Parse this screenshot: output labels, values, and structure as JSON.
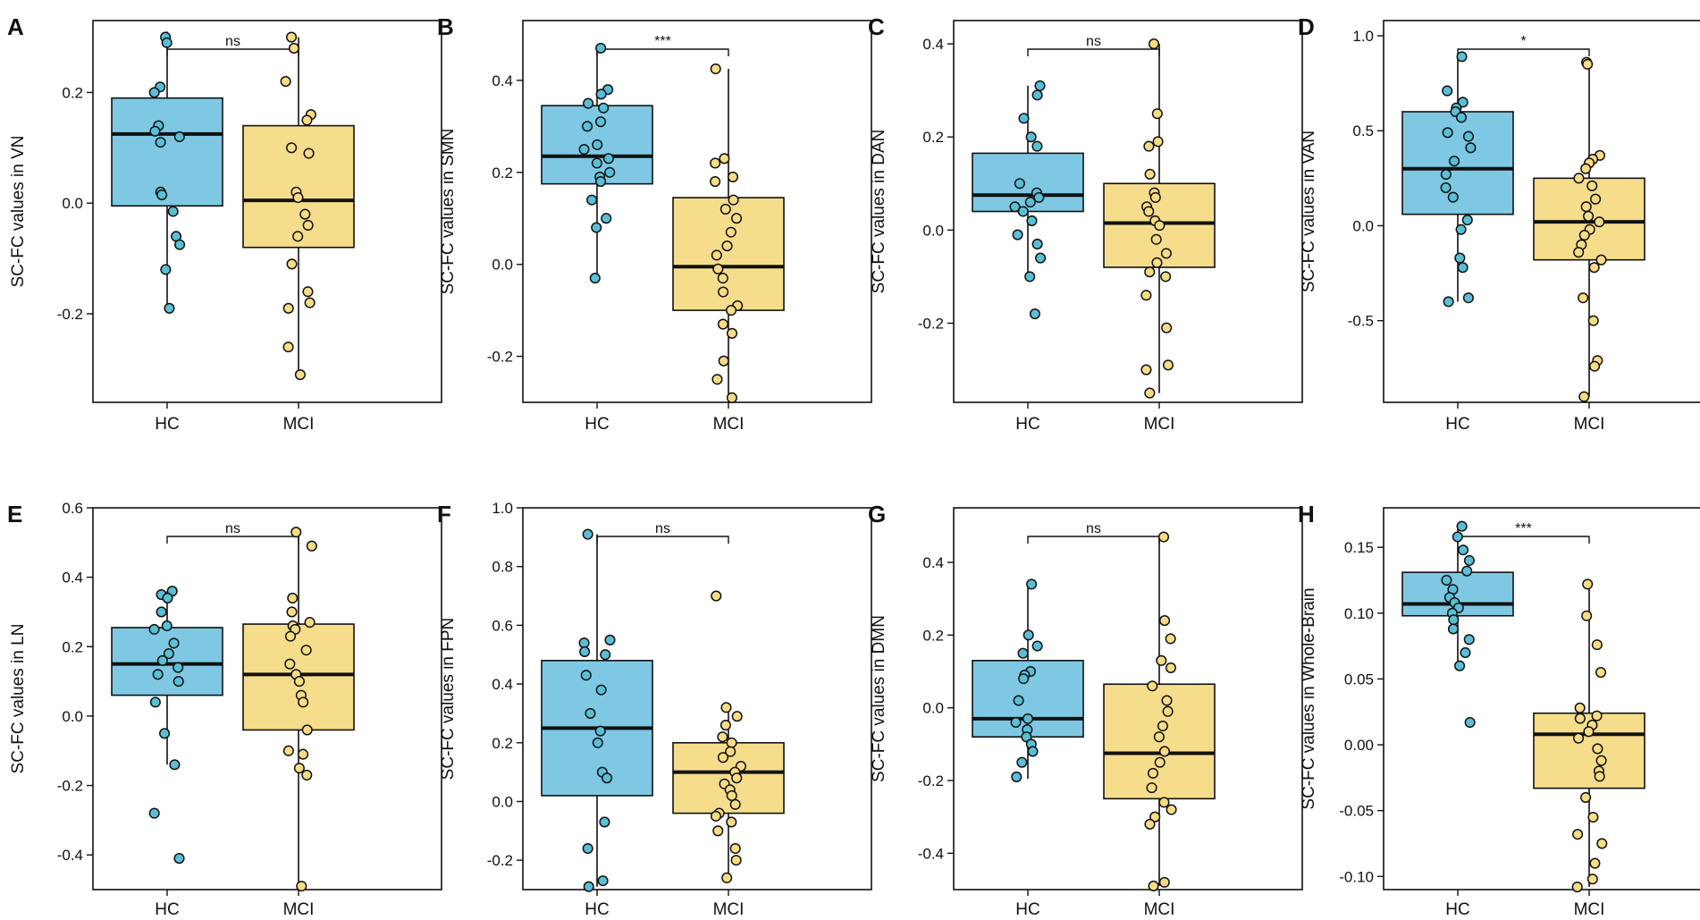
{
  "colors": {
    "hc_fill": "#7ec8e3",
    "mci_fill": "#f6dd8c",
    "hc_point": "#58bfd6",
    "mci_point": "#f8dc84",
    "stroke": "#111111"
  },
  "chart_data": [
    {
      "type": "box",
      "panel": "A",
      "ylabel": "SC-FC values in VN",
      "categories": [
        "HC",
        "MCI"
      ],
      "ylim": [
        -0.36,
        0.33
      ],
      "yticks": [
        {
          "v": -0.2,
          "label": "-0.2"
        },
        {
          "v": 0.0,
          "label": "0.0"
        },
        {
          "v": 0.2,
          "label": "0.2"
        }
      ],
      "significance": "ns",
      "boxes": [
        {
          "q1": -0.005,
          "median": 0.125,
          "q3": 0.19,
          "whisker_low": -0.19,
          "whisker_high": 0.31
        },
        {
          "q1": -0.08,
          "median": 0.005,
          "q3": 0.14,
          "whisker_low": -0.31,
          "whisker_high": 0.3
        }
      ],
      "points": [
        [
          0.3,
          0.29,
          0.21,
          0.2,
          0.14,
          0.13,
          0.12,
          0.11,
          0.02,
          0.015,
          -0.015,
          -0.06,
          -0.075,
          -0.12,
          -0.19
        ],
        [
          0.3,
          0.28,
          0.22,
          0.16,
          0.15,
          0.1,
          0.09,
          0.02,
          0.01,
          -0.02,
          -0.04,
          -0.06,
          -0.11,
          -0.16,
          -0.18,
          -0.19,
          -0.26,
          -0.31
        ]
      ]
    },
    {
      "type": "box",
      "panel": "B",
      "ylabel": "SC-FC values in SMN",
      "categories": [
        "HC",
        "MCI"
      ],
      "ylim": [
        -0.3,
        0.53
      ],
      "yticks": [
        {
          "v": -0.2,
          "label": "-0.2"
        },
        {
          "v": 0.0,
          "label": "0.0"
        },
        {
          "v": 0.2,
          "label": "0.2"
        },
        {
          "v": 0.4,
          "label": "0.4"
        }
      ],
      "significance": "***",
      "boxes": [
        {
          "q1": 0.175,
          "median": 0.235,
          "q3": 0.345,
          "whisker_low": -0.025,
          "whisker_high": 0.47
        },
        {
          "q1": -0.1,
          "median": -0.005,
          "q3": 0.145,
          "whisker_low": -0.295,
          "whisker_high": 0.425
        }
      ],
      "points": [
        [
          0.47,
          0.38,
          0.37,
          0.35,
          0.34,
          0.31,
          0.3,
          0.26,
          0.25,
          0.23,
          0.22,
          0.2,
          0.19,
          0.18,
          0.14,
          0.1,
          0.08,
          -0.03
        ],
        [
          0.425,
          0.23,
          0.22,
          0.19,
          0.18,
          0.14,
          0.12,
          0.1,
          0.07,
          0.04,
          0.02,
          -0.01,
          -0.03,
          -0.06,
          -0.09,
          -0.1,
          -0.13,
          -0.15,
          -0.21,
          -0.25,
          -0.29
        ]
      ]
    },
    {
      "type": "box",
      "panel": "C",
      "ylabel": "SC-FC values in DAN",
      "categories": [
        "HC",
        "MCI"
      ],
      "ylim": [
        -0.37,
        0.45
      ],
      "yticks": [
        {
          "v": -0.2,
          "label": "-0.2"
        },
        {
          "v": 0.0,
          "label": "0.0"
        },
        {
          "v": 0.2,
          "label": "0.2"
        },
        {
          "v": 0.4,
          "label": "0.4"
        }
      ],
      "significance": "ns",
      "boxes": [
        {
          "q1": 0.04,
          "median": 0.075,
          "q3": 0.165,
          "whisker_low": -0.105,
          "whisker_high": 0.31
        },
        {
          "q1": -0.08,
          "median": 0.015,
          "q3": 0.1,
          "whisker_low": -0.35,
          "whisker_high": 0.4
        }
      ],
      "points": [
        [
          0.31,
          0.29,
          0.24,
          0.2,
          0.18,
          0.1,
          0.08,
          0.07,
          0.06,
          0.05,
          0.04,
          0.02,
          -0.01,
          -0.03,
          -0.06,
          -0.1,
          -0.18
        ],
        [
          0.4,
          0.25,
          0.19,
          0.18,
          0.12,
          0.08,
          0.07,
          0.05,
          0.04,
          0.02,
          0.01,
          -0.02,
          -0.05,
          -0.07,
          -0.09,
          -0.1,
          -0.14,
          -0.21,
          -0.29,
          -0.3,
          -0.35
        ]
      ]
    },
    {
      "type": "box",
      "panel": "D",
      "ylabel": "SC-FC values in VAN",
      "categories": [
        "HC",
        "MCI"
      ],
      "ylim": [
        -0.93,
        1.08
      ],
      "yticks": [
        {
          "v": -0.5,
          "label": "-0.5"
        },
        {
          "v": 0.0,
          "label": "0.0"
        },
        {
          "v": 0.5,
          "label": "0.5"
        },
        {
          "v": 1.0,
          "label": "1.0"
        }
      ],
      "significance": "*",
      "boxes": [
        {
          "q1": 0.06,
          "median": 0.3,
          "q3": 0.6,
          "whisker_low": -0.4,
          "whisker_high": 0.89
        },
        {
          "q1": -0.18,
          "median": 0.02,
          "q3": 0.25,
          "whisker_low": -0.9,
          "whisker_high": 0.86
        }
      ],
      "points": [
        [
          0.89,
          0.71,
          0.65,
          0.62,
          0.6,
          0.57,
          0.49,
          0.47,
          0.41,
          0.34,
          0.27,
          0.2,
          0.15,
          0.03,
          -0.02,
          -0.17,
          -0.22,
          -0.38,
          -0.4
        ],
        [
          0.86,
          0.85,
          0.37,
          0.35,
          0.33,
          0.3,
          0.25,
          0.21,
          0.14,
          0.1,
          0.05,
          0.02,
          -0.02,
          -0.05,
          -0.1,
          -0.14,
          -0.18,
          -0.22,
          -0.38,
          -0.5,
          -0.71,
          -0.74,
          -0.9
        ]
      ]
    },
    {
      "type": "box",
      "panel": "E",
      "ylabel": "SC-FC values in LN",
      "categories": [
        "HC",
        "MCI"
      ],
      "ylim": [
        -0.5,
        0.6
      ],
      "yticks": [
        {
          "v": -0.4,
          "label": "-0.4"
        },
        {
          "v": -0.2,
          "label": "-0.2"
        },
        {
          "v": 0.0,
          "label": "0.0"
        },
        {
          "v": 0.2,
          "label": "0.2"
        },
        {
          "v": 0.4,
          "label": "0.4"
        },
        {
          "v": 0.6,
          "label": "0.6"
        }
      ],
      "significance": "ns",
      "boxes": [
        {
          "q1": 0.06,
          "median": 0.15,
          "q3": 0.255,
          "whisker_low": -0.14,
          "whisker_high": 0.36
        },
        {
          "q1": -0.04,
          "median": 0.12,
          "q3": 0.265,
          "whisker_low": -0.49,
          "whisker_high": 0.53
        }
      ],
      "points": [
        [
          0.36,
          0.35,
          0.34,
          0.3,
          0.26,
          0.25,
          0.21,
          0.18,
          0.16,
          0.14,
          0.12,
          0.1,
          0.04,
          -0.05,
          -0.14,
          -0.28,
          -0.41
        ],
        [
          0.53,
          0.49,
          0.34,
          0.3,
          0.27,
          0.26,
          0.25,
          0.23,
          0.19,
          0.15,
          0.12,
          0.1,
          0.06,
          0.04,
          -0.04,
          -0.1,
          -0.11,
          -0.15,
          -0.17,
          -0.49
        ]
      ]
    },
    {
      "type": "box",
      "panel": "F",
      "ylabel": "SC-FC values in FPN",
      "categories": [
        "HC",
        "MCI"
      ],
      "ylim": [
        -0.3,
        1.0
      ],
      "yticks": [
        {
          "v": -0.2,
          "label": "-0.2"
        },
        {
          "v": 0.0,
          "label": "0.0"
        },
        {
          "v": 0.2,
          "label": "0.2"
        },
        {
          "v": 0.4,
          "label": "0.4"
        },
        {
          "v": 0.6,
          "label": "0.6"
        },
        {
          "v": 0.8,
          "label": "0.8"
        },
        {
          "v": 1.0,
          "label": "1.0"
        }
      ],
      "significance": "ns",
      "boxes": [
        {
          "q1": 0.02,
          "median": 0.25,
          "q3": 0.48,
          "whisker_low": -0.29,
          "whisker_high": 0.91
        },
        {
          "q1": -0.04,
          "median": 0.1,
          "q3": 0.2,
          "whisker_low": -0.26,
          "whisker_high": 0.33
        }
      ],
      "points": [
        [
          0.91,
          0.55,
          0.54,
          0.51,
          0.5,
          0.43,
          0.38,
          0.3,
          0.24,
          0.2,
          0.1,
          0.08,
          -0.07,
          -0.16,
          -0.27,
          -0.29
        ],
        [
          0.7,
          0.32,
          0.29,
          0.26,
          0.22,
          0.2,
          0.17,
          0.15,
          0.12,
          0.1,
          0.08,
          0.06,
          0.04,
          0.02,
          -0.01,
          -0.04,
          -0.05,
          -0.07,
          -0.1,
          -0.16,
          -0.2,
          -0.26
        ]
      ]
    },
    {
      "type": "box",
      "panel": "G",
      "ylabel": "SC-FC values in DMN",
      "categories": [
        "HC",
        "MCI"
      ],
      "ylim": [
        -0.5,
        0.55
      ],
      "yticks": [
        {
          "v": -0.4,
          "label": "-0.4"
        },
        {
          "v": -0.2,
          "label": "-0.2"
        },
        {
          "v": 0.0,
          "label": "0.0"
        },
        {
          "v": 0.2,
          "label": "0.2"
        },
        {
          "v": 0.4,
          "label": "0.4"
        }
      ],
      "significance": "ns",
      "boxes": [
        {
          "q1": -0.08,
          "median": -0.03,
          "q3": 0.13,
          "whisker_low": -0.195,
          "whisker_high": 0.34
        },
        {
          "q1": -0.25,
          "median": -0.125,
          "q3": 0.065,
          "whisker_low": -0.49,
          "whisker_high": 0.47
        }
      ],
      "points": [
        [
          0.34,
          0.2,
          0.17,
          0.15,
          0.1,
          0.09,
          0.08,
          0.02,
          -0.03,
          -0.04,
          -0.06,
          -0.08,
          -0.1,
          -0.12,
          -0.15,
          -0.19
        ],
        [
          0.47,
          0.24,
          0.19,
          0.13,
          0.11,
          0.06,
          0.02,
          -0.01,
          -0.05,
          -0.08,
          -0.12,
          -0.15,
          -0.18,
          -0.22,
          -0.26,
          -0.28,
          -0.3,
          -0.32,
          -0.48,
          -0.49
        ]
      ]
    },
    {
      "type": "box",
      "panel": "H",
      "ylabel": "SC-FC values in Whole-Brain",
      "categories": [
        "HC",
        "MCI"
      ],
      "ylim": [
        -0.11,
        0.18
      ],
      "yticks": [
        {
          "v": -0.1,
          "label": "-0.10"
        },
        {
          "v": -0.05,
          "label": "-0.05"
        },
        {
          "v": 0.0,
          "label": "0.00"
        },
        {
          "v": 0.05,
          "label": "0.05"
        },
        {
          "v": 0.1,
          "label": "0.10"
        },
        {
          "v": 0.15,
          "label": "0.15"
        }
      ],
      "significance": "***",
      "boxes": [
        {
          "q1": 0.098,
          "median": 0.107,
          "q3": 0.131,
          "whisker_low": 0.06,
          "whisker_high": 0.166
        },
        {
          "q1": -0.033,
          "median": 0.008,
          "q3": 0.024,
          "whisker_low": -0.108,
          "whisker_high": 0.122
        }
      ],
      "points": [
        [
          0.166,
          0.158,
          0.148,
          0.14,
          0.132,
          0.125,
          0.118,
          0.112,
          0.108,
          0.104,
          0.1,
          0.095,
          0.088,
          0.08,
          0.07,
          0.06,
          0.017
        ],
        [
          0.122,
          0.098,
          0.076,
          0.055,
          0.028,
          0.022,
          0.02,
          0.015,
          0.01,
          0.005,
          -0.003,
          -0.012,
          -0.02,
          -0.024,
          -0.04,
          -0.055,
          -0.068,
          -0.075,
          -0.09,
          -0.102,
          -0.108
        ]
      ]
    }
  ]
}
